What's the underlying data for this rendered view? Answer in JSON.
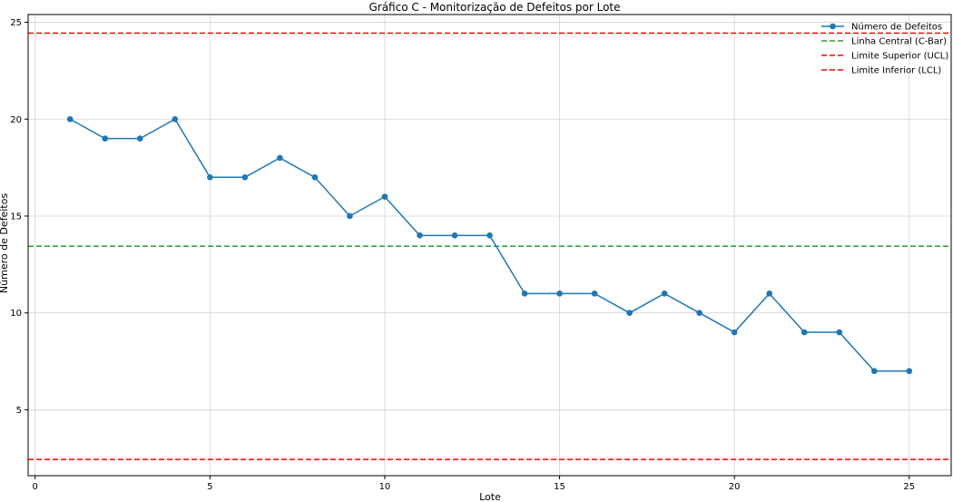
{
  "chart_data": {
    "type": "line",
    "title": "Gráfico C - Monitorização de Defeitos por Lote",
    "xlabel": "Lote",
    "ylabel": "Número de Defeitos",
    "xlim": [
      -0.2,
      26.2
    ],
    "ylim": [
      1.6,
      25.4
    ],
    "xticks": [
      0,
      5,
      10,
      15,
      20,
      25
    ],
    "yticks": [
      5,
      10,
      15,
      20,
      25
    ],
    "grid": true,
    "legend_position": "top-right",
    "x": [
      1,
      2,
      3,
      4,
      5,
      6,
      7,
      8,
      9,
      10,
      11,
      12,
      13,
      14,
      15,
      16,
      17,
      18,
      19,
      20,
      21,
      22,
      23,
      24,
      25
    ],
    "series": [
      {
        "name": "Número de Defeitos",
        "color": "#1f77b4",
        "marker": "circle",
        "values": [
          20,
          19,
          19,
          20,
          17,
          17,
          18,
          17,
          15,
          16,
          14,
          14,
          14,
          11,
          11,
          11,
          10,
          11,
          10,
          9,
          11,
          9,
          9,
          7,
          7
        ]
      }
    ],
    "reference_lines": [
      {
        "name": "Linha Central (C-Bar)",
        "value": 13.44,
        "color": "#2ca02c",
        "style": "dashed"
      },
      {
        "name": "Limite Superior (UCL)",
        "value": 24.44,
        "color": "#ff0000",
        "style": "dashed"
      },
      {
        "name": "Limite Inferior (LCL)",
        "value": 2.44,
        "color": "#ff0000",
        "style": "dashed"
      }
    ]
  }
}
